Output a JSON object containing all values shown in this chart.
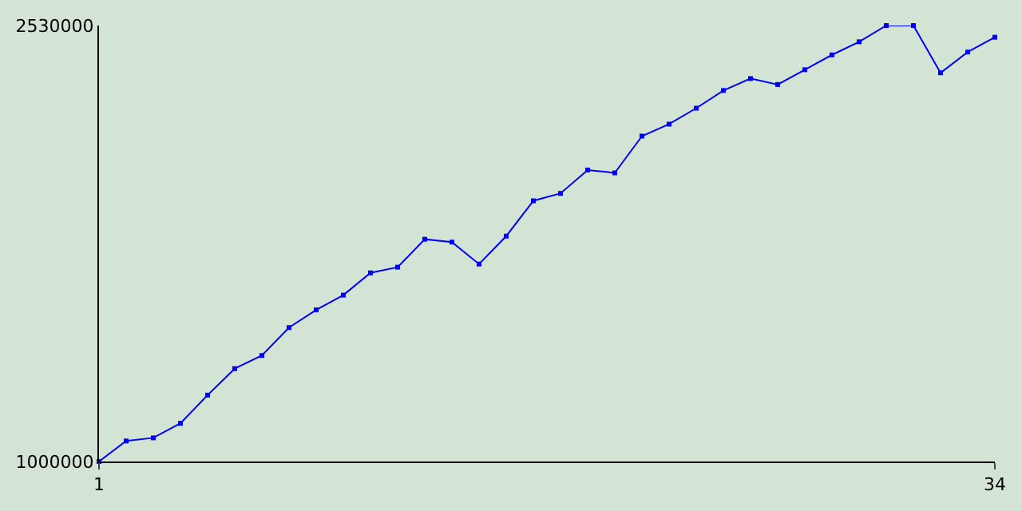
{
  "chart_data": {
    "type": "line",
    "x": [
      1,
      2,
      3,
      4,
      5,
      6,
      7,
      8,
      9,
      10,
      11,
      12,
      13,
      14,
      15,
      16,
      17,
      18,
      19,
      20,
      21,
      22,
      23,
      24,
      25,
      26,
      27,
      28,
      29,
      30,
      31,
      32,
      33,
      34
    ],
    "series": [
      {
        "color": "#0000ff",
        "values": [
          1000000,
          1072000,
          1083000,
          1134000,
          1233000,
          1326000,
          1372000,
          1470000,
          1532000,
          1584000,
          1662000,
          1682000,
          1780000,
          1770000,
          1693000,
          1791000,
          1915000,
          1941000,
          2023000,
          2013000,
          2142000,
          2184000,
          2240000,
          2302000,
          2344000,
          2323000,
          2375000,
          2427000,
          2473000,
          2530000,
          2530000,
          2364000,
          2437000,
          2489000
        ]
      }
    ],
    "xlim": [
      1,
      34
    ],
    "xticks": [
      1,
      34
    ],
    "ylim": [
      1000000,
      2530000
    ],
    "yticks": [
      1000000,
      2530000
    ],
    "marker": "square",
    "line_style": "solid"
  }
}
